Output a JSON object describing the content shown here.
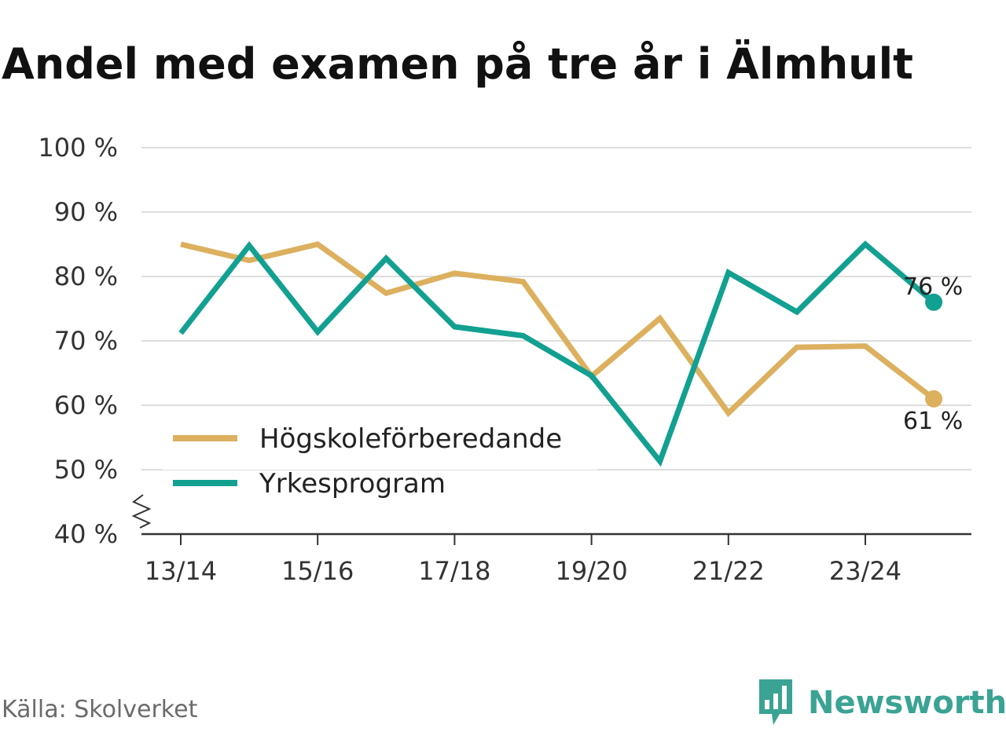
{
  "title": "Andel med examen på tre år i Älmhult",
  "source": "Källa: Skolverket",
  "brand": {
    "name": "Newsworthy",
    "logo_icon": "newsworthy-logo-icon",
    "color": "#3aa394"
  },
  "chart_data": {
    "type": "line",
    "title": "Andel med examen på tre år i Älmhult",
    "xlabel": "",
    "ylabel": "",
    "x": [
      "13/14",
      "14/15",
      "15/16",
      "16/17",
      "17/18",
      "18/19",
      "19/20",
      "20/21",
      "21/22",
      "22/23",
      "23/24",
      "24/25"
    ],
    "x_tick_labels": [
      "13/14",
      "15/16",
      "17/18",
      "19/20",
      "21/22",
      "23/24"
    ],
    "y_ticks": [
      40,
      50,
      60,
      70,
      80,
      90,
      100
    ],
    "y_tick_labels": [
      "40 %",
      "50 %",
      "60 %",
      "70 %",
      "80 %",
      "90 %",
      "100 %"
    ],
    "ylim": [
      40,
      100
    ],
    "y_axis_broken": true,
    "grid": true,
    "legend_position": "bottom-left",
    "series": [
      {
        "name": "Högskoleförberedande",
        "color": "#dcb05e",
        "values": [
          85.0,
          82.5,
          85.0,
          77.4,
          80.5,
          79.2,
          64.5,
          73.5,
          58.8,
          69.0,
          69.2,
          61.0
        ],
        "end_label": "61 %"
      },
      {
        "name": "Yrkesprogram",
        "color": "#12a091",
        "values": [
          71.2,
          84.8,
          71.4,
          82.8,
          72.2,
          70.8,
          64.6,
          51.3,
          80.6,
          74.5,
          85.0,
          76.0
        ],
        "end_label": "76 %"
      }
    ]
  }
}
